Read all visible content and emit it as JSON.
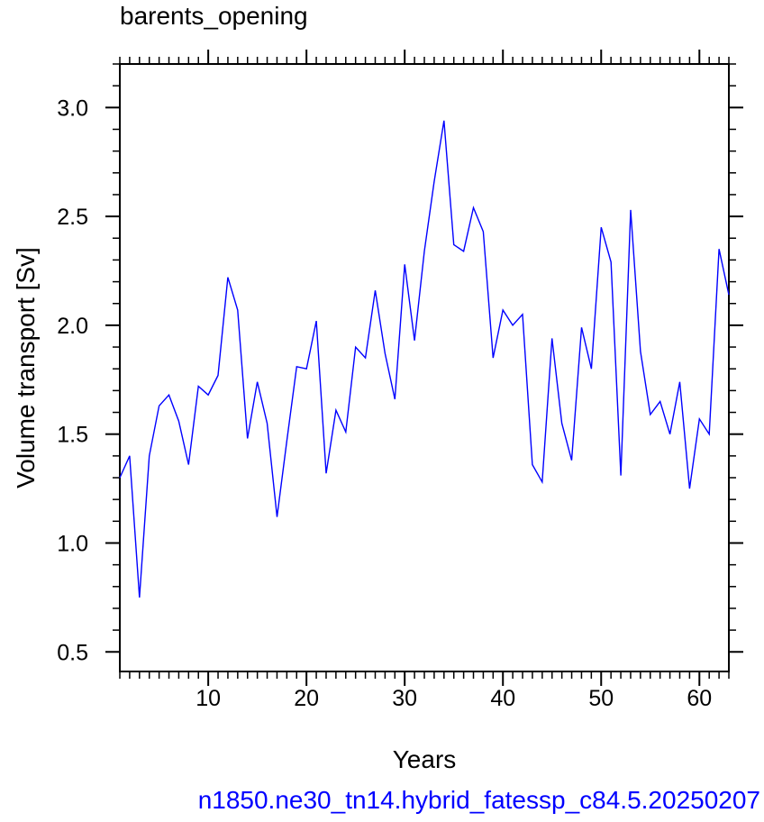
{
  "title": "barents_opening",
  "footer": "n1850.ne30_tn14.hybrid_fatessp_c84.5.20250207",
  "chart_data": {
    "type": "line",
    "title": "barents_opening",
    "xlabel": "Years",
    "ylabel": "Volume transport [Sv]",
    "xlim": [
      1,
      63
    ],
    "ylim": [
      0.41,
      3.2
    ],
    "xticks": [
      10,
      20,
      30,
      40,
      50,
      60
    ],
    "yticks": [
      0.5,
      1.0,
      1.5,
      2.0,
      2.5,
      3.0
    ],
    "ytick_labels": [
      "0.5",
      "1.0",
      "1.5",
      "2.0",
      "2.5",
      "3.0"
    ],
    "grid": false,
    "line_color": "#0000ff",
    "series": [
      {
        "x": [
          1,
          2,
          3,
          4,
          5,
          6,
          7,
          8,
          9,
          10,
          11,
          12,
          13,
          14,
          15,
          16,
          17,
          18,
          19,
          20,
          21,
          22,
          23,
          24,
          25,
          26,
          27,
          28,
          29,
          30,
          31,
          32,
          33,
          34,
          35,
          36,
          37,
          38,
          39,
          40,
          41,
          42,
          43,
          44,
          45,
          46,
          47,
          48,
          49,
          50,
          51,
          52,
          53,
          54,
          55,
          56,
          57,
          58,
          59,
          60,
          61,
          62,
          63
        ],
        "values": [
          1.3,
          1.4,
          0.75,
          1.4,
          1.63,
          1.68,
          1.56,
          1.36,
          1.72,
          1.68,
          1.77,
          2.22,
          2.07,
          1.48,
          1.74,
          1.55,
          1.12,
          1.47,
          1.81,
          1.8,
          2.02,
          1.32,
          1.61,
          1.51,
          1.9,
          1.85,
          2.16,
          1.87,
          1.66,
          2.28,
          1.93,
          2.34,
          2.66,
          2.94,
          2.37,
          2.34,
          2.54,
          2.43,
          1.85,
          2.07,
          2.0,
          2.05,
          1.36,
          1.28,
          1.94,
          1.55,
          1.38,
          1.99,
          1.8,
          2.45,
          2.29,
          1.31,
          2.53,
          1.88,
          1.59,
          1.65,
          1.5,
          1.74,
          1.25,
          1.57,
          1.5,
          2.35,
          2.14
        ]
      }
    ]
  }
}
